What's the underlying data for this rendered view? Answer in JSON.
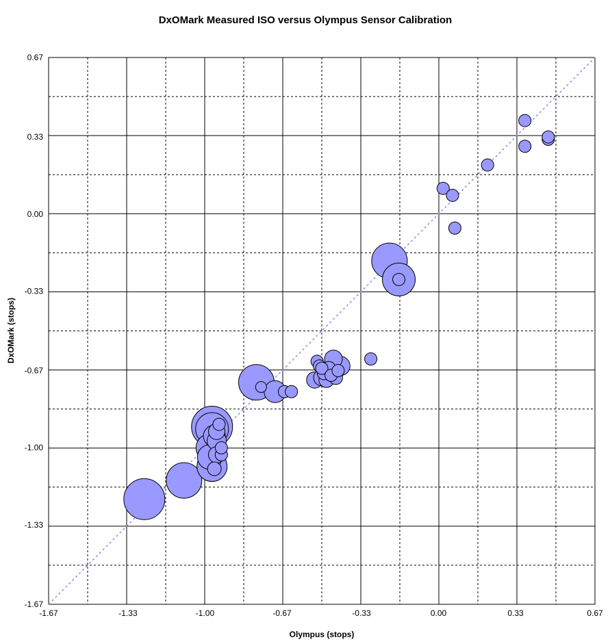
{
  "chart_data": {
    "type": "scatter",
    "title": "DxOMark Measured ISO versus Olympus Sensor Calibration",
    "xlabel": "Olympus (stops)",
    "ylabel": "DxOMark (stops)",
    "xlim": [
      -1.67,
      0.67
    ],
    "ylim": [
      -1.67,
      0.67
    ],
    "x_ticks": [
      "-1.67",
      "-1.33",
      "-1.00",
      "-0.67",
      "-0.33",
      "0.00",
      "0.33",
      "0.67"
    ],
    "y_ticks": [
      "0.67",
      "0.33",
      "0.00",
      "-0.33",
      "-0.67",
      "-1.00",
      "-1.33",
      "-1.67"
    ],
    "grid": true,
    "reference_line": "y = x",
    "bubble_fill": "#9999ff",
    "bubble_stroke": "#000000",
    "reference_line_color": "#8f8fe8",
    "series": [
      {
        "points": [
          {
            "x": -1.26,
            "y": -1.22,
            "size": 30
          },
          {
            "x": -1.09,
            "y": -1.14,
            "size": 26
          },
          {
            "x": -0.97,
            "y": -0.91,
            "size": 30
          },
          {
            "x": -0.97,
            "y": -0.92,
            "size": 24
          },
          {
            "x": -0.98,
            "y": -1.0,
            "size": 20
          },
          {
            "x": -0.98,
            "y": -1.04,
            "size": 18
          },
          {
            "x": -0.97,
            "y": -1.08,
            "size": 22
          },
          {
            "x": -0.96,
            "y": -0.95,
            "size": 16
          },
          {
            "x": -0.95,
            "y": -0.93,
            "size": 12
          },
          {
            "x": -0.95,
            "y": -0.97,
            "size": 14
          },
          {
            "x": -0.96,
            "y": -1.09,
            "size": 10
          },
          {
            "x": -0.95,
            "y": -1.03,
            "size": 12
          },
          {
            "x": -0.93,
            "y": -1.03,
            "size": 9
          },
          {
            "x": -0.93,
            "y": -1.0,
            "size": 9
          },
          {
            "x": -0.94,
            "y": -0.9,
            "size": 9
          },
          {
            "x": -0.78,
            "y": -0.72,
            "size": 26
          },
          {
            "x": -0.76,
            "y": -0.74,
            "size": 8
          },
          {
            "x": -0.7,
            "y": -0.76,
            "size": 16
          },
          {
            "x": -0.66,
            "y": -0.76,
            "size": 9
          },
          {
            "x": -0.63,
            "y": -0.76,
            "size": 9
          },
          {
            "x": -0.53,
            "y": -0.71,
            "size": 12
          },
          {
            "x": -0.52,
            "y": -0.63,
            "size": 9
          },
          {
            "x": -0.51,
            "y": -0.65,
            "size": 9
          },
          {
            "x": -0.5,
            "y": -0.7,
            "size": 12
          },
          {
            "x": -0.5,
            "y": -0.66,
            "size": 9
          },
          {
            "x": -0.49,
            "y": -0.68,
            "size": 10
          },
          {
            "x": -0.48,
            "y": -0.71,
            "size": 11
          },
          {
            "x": -0.47,
            "y": -0.66,
            "size": 10
          },
          {
            "x": -0.46,
            "y": -0.69,
            "size": 9
          },
          {
            "x": -0.45,
            "y": -0.62,
            "size": 13
          },
          {
            "x": -0.44,
            "y": -0.7,
            "size": 10
          },
          {
            "x": -0.43,
            "y": -0.67,
            "size": 9
          },
          {
            "x": -0.42,
            "y": -0.65,
            "size": 14
          },
          {
            "x": -0.29,
            "y": -0.62,
            "size": 9
          },
          {
            "x": -0.21,
            "y": -0.2,
            "size": 26
          },
          {
            "x": -0.17,
            "y": -0.28,
            "size": 24
          },
          {
            "x": -0.17,
            "y": -0.28,
            "size": 9
          },
          {
            "x": 0.02,
            "y": 0.11,
            "size": 9
          },
          {
            "x": 0.06,
            "y": 0.08,
            "size": 9
          },
          {
            "x": 0.07,
            "y": -0.06,
            "size": 9
          },
          {
            "x": 0.21,
            "y": 0.21,
            "size": 9
          },
          {
            "x": 0.37,
            "y": 0.4,
            "size": 9
          },
          {
            "x": 0.37,
            "y": 0.29,
            "size": 9
          },
          {
            "x": 0.47,
            "y": 0.32,
            "size": 9
          },
          {
            "x": 0.47,
            "y": 0.33,
            "size": 9
          }
        ]
      }
    ]
  }
}
